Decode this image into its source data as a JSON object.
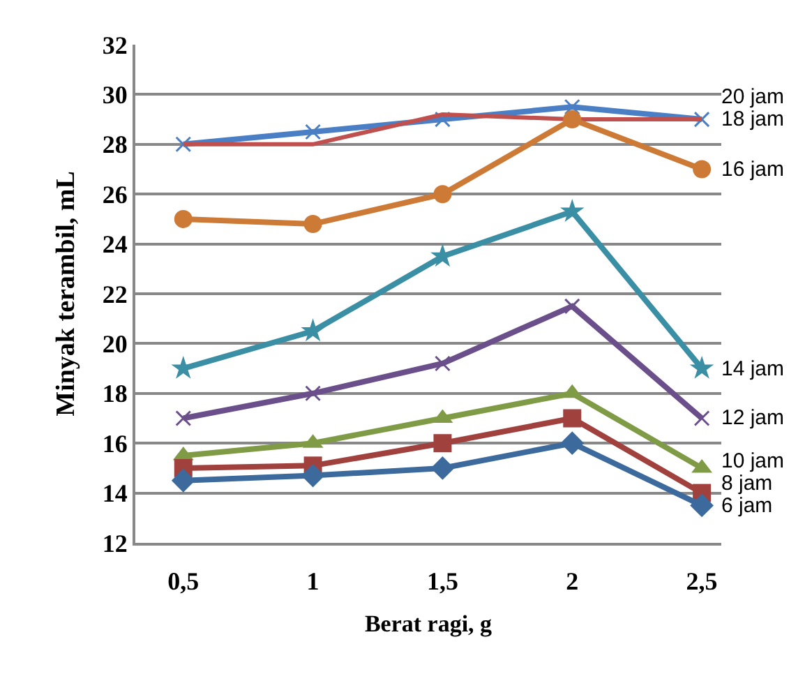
{
  "chart_data": {
    "type": "line",
    "xlabel": "Berat ragi, g",
    "ylabel": "Minyak terambil, mL",
    "categories": [
      "0,5",
      "1",
      "1,5",
      "2",
      "2,5"
    ],
    "ylim": [
      12,
      32
    ],
    "yticks": [
      12,
      14,
      16,
      18,
      20,
      22,
      24,
      26,
      28,
      30,
      32
    ],
    "grid": "y",
    "legend": false,
    "series": [
      {
        "name": "6 jam",
        "color": "#3d6a9d",
        "marker": "diamond",
        "values": [
          14.5,
          14.7,
          15,
          16,
          13.5
        ]
      },
      {
        "name": "8 jam",
        "color": "#a0413e",
        "marker": "square",
        "values": [
          15,
          15.1,
          16,
          17,
          14
        ]
      },
      {
        "name": "10 jam",
        "color": "#7f9b46",
        "marker": "triangle",
        "values": [
          15.5,
          16,
          17,
          18,
          15
        ]
      },
      {
        "name": "12 jam",
        "color": "#6a4f8a",
        "marker": "cross",
        "values": [
          17,
          18,
          19.2,
          21.5,
          17
        ]
      },
      {
        "name": "14 jam",
        "color": "#3a8fa5",
        "marker": "star",
        "values": [
          19,
          20.5,
          23.5,
          25.3,
          19
        ]
      },
      {
        "name": "16 jam",
        "color": "#cc7a35",
        "marker": "circle",
        "values": [
          25,
          24.8,
          26,
          29,
          27
        ]
      },
      {
        "name": "18 jam",
        "color": "#c0504d",
        "marker": "none",
        "values": [
          28,
          28,
          29.2,
          29,
          29
        ]
      },
      {
        "name": "20 jam",
        "color": "#4a7fc5",
        "marker": "cross",
        "values": [
          28,
          28.5,
          29,
          29.5,
          29
        ]
      }
    ]
  }
}
